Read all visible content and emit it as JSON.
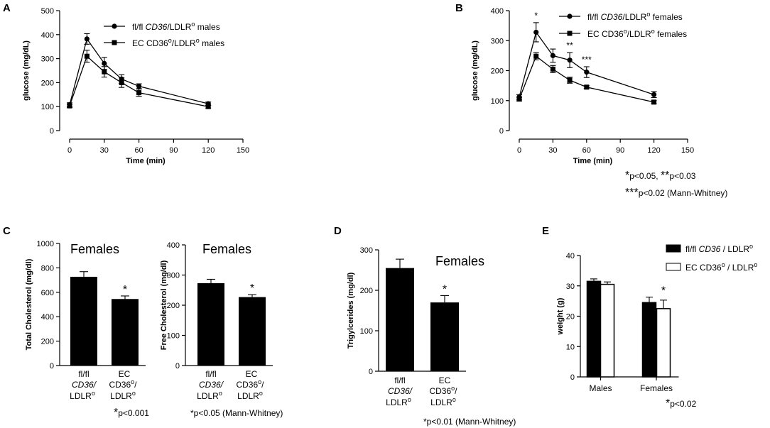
{
  "panels": {
    "A": "A",
    "B": "B",
    "C": "C",
    "D": "D",
    "E": "E"
  },
  "chart_data": [
    {
      "id": "A",
      "type": "line",
      "xlabel": "Time (min)",
      "ylabel": "glucose (mg/dL)",
      "xlim": [
        0,
        150
      ],
      "ylim": [
        0,
        500
      ],
      "xticks": [
        0,
        30,
        60,
        90,
        120,
        150
      ],
      "yticks": [
        0,
        100,
        200,
        300,
        400,
        500
      ],
      "x": [
        0,
        15,
        30,
        45,
        60,
        120
      ],
      "series": [
        {
          "name": "fl/fl CD36/LDLR° males",
          "marker": "circle",
          "values": [
            108,
            382,
            280,
            215,
            185,
            112
          ],
          "err": [
            8,
            22,
            25,
            18,
            10,
            7
          ]
        },
        {
          "name": "EC CD36°/LDLR° males",
          "marker": "square",
          "values": [
            103,
            310,
            245,
            200,
            158,
            100
          ],
          "err": [
            7,
            25,
            22,
            20,
            15,
            6
          ]
        }
      ],
      "legend": [
        {
          "prefix": "fl/fl ",
          "italic": "CD36",
          "rest": "/LDLR",
          "sup": "o",
          "suffix": " males"
        },
        {
          "prefix": "EC CD36",
          "sup1": "o",
          "rest": "/LDLR",
          "sup": "o",
          "suffix": " males"
        }
      ],
      "sig": []
    },
    {
      "id": "B",
      "type": "line",
      "xlabel": "Time (min)",
      "ylabel": "glucose (mg/dL)",
      "xlim": [
        0,
        150
      ],
      "ylim": [
        0,
        400
      ],
      "xticks": [
        0,
        30,
        60,
        90,
        120,
        150
      ],
      "yticks": [
        0,
        100,
        200,
        300,
        400
      ],
      "x": [
        0,
        15,
        30,
        45,
        60,
        120
      ],
      "series": [
        {
          "name": "fl/fl CD36/LDLR° females",
          "marker": "circle",
          "values": [
            112,
            328,
            250,
            235,
            195,
            120
          ],
          "err": [
            8,
            32,
            22,
            25,
            18,
            10
          ]
        },
        {
          "name": "EC CD36°/LDLR° females",
          "marker": "square",
          "values": [
            105,
            248,
            205,
            168,
            145,
            95
          ],
          "err": [
            6,
            12,
            12,
            10,
            5,
            5
          ]
        }
      ],
      "legend": [
        {
          "prefix": "fl/fl ",
          "italic": "CD36",
          "rest": "/LDLR",
          "sup": "o",
          "suffix": " females"
        },
        {
          "prefix": "EC CD36",
          "sup1": "o",
          "rest": "/LDLR",
          "sup": "o",
          "suffix": " females"
        }
      ],
      "sig": [
        {
          "x": 15,
          "label": "*"
        },
        {
          "x": 45,
          "label": "**"
        },
        {
          "x": 60,
          "label": "***"
        }
      ]
    },
    {
      "id": "C1",
      "type": "bar",
      "title": "Females",
      "ylabel": "Total Cholesterol (mg/dl)",
      "ylim": [
        0,
        1000
      ],
      "yticks": [
        0,
        200,
        400,
        600,
        800,
        1000
      ],
      "values": [
        727,
        545
      ],
      "err": [
        42,
        25
      ],
      "sig": [
        "",
        "*"
      ]
    },
    {
      "id": "C2",
      "type": "bar",
      "title": "Females",
      "ylabel": "Free Cholesterol (mg/dl)",
      "ylim": [
        0,
        400
      ],
      "yticks": [
        0,
        100,
        200,
        300,
        400
      ],
      "values": [
        273,
        227
      ],
      "err": [
        13,
        8
      ],
      "sig": [
        "",
        "*"
      ]
    },
    {
      "id": "D",
      "type": "bar",
      "title": "Females",
      "ylabel": "Trigylcerides (mg/dl)",
      "ylim": [
        0,
        300
      ],
      "yticks": [
        0,
        100,
        200,
        300
      ],
      "values": [
        255,
        170
      ],
      "err": [
        22,
        17
      ],
      "sig": [
        "",
        "*"
      ]
    },
    {
      "id": "E",
      "type": "bar",
      "ylabel": "weight (g)",
      "ylim": [
        0,
        40
      ],
      "yticks": [
        0,
        10,
        20,
        30,
        40
      ],
      "categories": [
        "Males",
        "Females"
      ],
      "series": [
        {
          "name": "fl/fl CD36 / LDLR°",
          "fill": "#000000",
          "values": [
            31.5,
            24.5
          ],
          "err": [
            0.8,
            1.8
          ]
        },
        {
          "name": "EC CD36° / LDLR°",
          "fill": "#ffffff",
          "values": [
            30.5,
            22.5
          ],
          "err": [
            0.8,
            2.8
          ]
        }
      ],
      "legend": [
        {
          "prefix": "fl/fl ",
          "italic": "CD36",
          "rest": " / LDLR",
          "sup": "o"
        },
        {
          "prefix": "EC CD36",
          "sup1": "o",
          "rest": " / LDLR",
          "sup": "o"
        }
      ],
      "sig": [
        "",
        "*"
      ]
    }
  ],
  "categoryLabels": {
    "fl": {
      "line1": "fl/fl",
      "line2": "CD36/",
      "line3": "LDLR",
      "sup": "o"
    },
    "ec": {
      "line1": "EC",
      "line2": "CD36",
      "sup2": "o",
      "line2b": "/",
      "line3": "LDLR",
      "sup": "o"
    }
  },
  "notes": {
    "B_line1_a": "p<0.05, ",
    "B_star1": "*",
    "B_star2": "**",
    "B_line1_b": "p<0.03",
    "B_star3": "***",
    "B_line2": "p<0.02 (Mann-Whitney)",
    "C1": "p<0.001",
    "C1_star": "*",
    "C2": "*p<0.05 (Mann-Whitney)",
    "D": "*p<0.01 (Mann-Whitney)",
    "E": "p<0.02",
    "E_star": "*"
  }
}
